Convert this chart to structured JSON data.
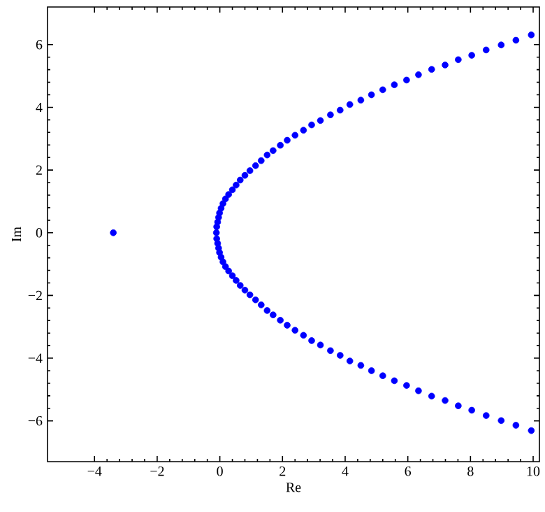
{
  "chart_data": {
    "type": "scatter",
    "xlabel": "Re",
    "ylabel": "Im",
    "xlim": [
      -5.5,
      10.2
    ],
    "ylim": [
      -7.3,
      7.2
    ],
    "xticks": [
      {
        "value": -4,
        "label": "−4"
      },
      {
        "value": -2,
        "label": "−2"
      },
      0,
      2,
      4,
      6,
      8,
      10
    ],
    "yticks": [
      {
        "value": -6,
        "label": "−6"
      },
      {
        "value": -4,
        "label": "−4"
      },
      {
        "value": -2,
        "label": "−2"
      },
      0,
      2,
      4,
      6
    ],
    "marker": "circle",
    "series": [
      {
        "color": "#0000ff",
        "x": [
          -3.4,
          9.94,
          9.45,
          8.98,
          8.5,
          8.04,
          7.61,
          7.19,
          6.76,
          6.34,
          5.96,
          5.57,
          5.2,
          4.84,
          4.5,
          4.15,
          3.84,
          3.53,
          3.21,
          2.93,
          2.67,
          2.4,
          2.15,
          1.93,
          1.7,
          1.51,
          1.32,
          1.14,
          0.96,
          0.8,
          0.65,
          0.52,
          0.4,
          0.28,
          0.18,
          0.1,
          0.04,
          -0.01,
          -0.04,
          -0.07,
          -0.1,
          -0.11,
          -0.1,
          -0.07,
          -0.04,
          -0.01,
          0.04,
          0.1,
          0.18,
          0.28,
          0.4,
          0.52,
          0.65,
          0.8,
          0.96,
          1.14,
          1.32,
          1.51,
          1.7,
          1.93,
          2.15,
          2.4,
          2.67,
          2.93,
          3.21,
          3.53,
          3.84,
          4.15,
          4.5,
          4.84,
          5.2,
          5.57,
          5.96,
          6.34,
          6.76,
          7.19,
          7.61,
          8.04,
          8.5,
          8.98,
          9.45,
          9.94
        ],
        "values": [
          0,
          6.31,
          6.14,
          5.99,
          5.83,
          5.66,
          5.52,
          5.35,
          5.21,
          5.04,
          4.87,
          4.72,
          4.56,
          4.4,
          4.23,
          4.09,
          3.91,
          3.76,
          3.58,
          3.44,
          3.27,
          3.11,
          2.95,
          2.79,
          2.62,
          2.48,
          2.3,
          2.14,
          1.98,
          1.83,
          1.68,
          1.52,
          1.37,
          1.22,
          1.08,
          0.93,
          0.78,
          0.63,
          0.49,
          0.34,
          0.19,
          0,
          -0.19,
          -0.34,
          -0.49,
          -0.63,
          -0.78,
          -0.93,
          -1.08,
          -1.22,
          -1.37,
          -1.52,
          -1.68,
          -1.83,
          -1.98,
          -2.14,
          -2.3,
          -2.48,
          -2.62,
          -2.79,
          -2.95,
          -3.11,
          -3.27,
          -3.44,
          -3.58,
          -3.76,
          -3.91,
          -4.09,
          -4.23,
          -4.4,
          -4.56,
          -4.72,
          -4.87,
          -5.04,
          -5.21,
          -5.35,
          -5.52,
          -5.66,
          -5.83,
          -5.99,
          -6.14,
          -6.31
        ]
      }
    ]
  }
}
